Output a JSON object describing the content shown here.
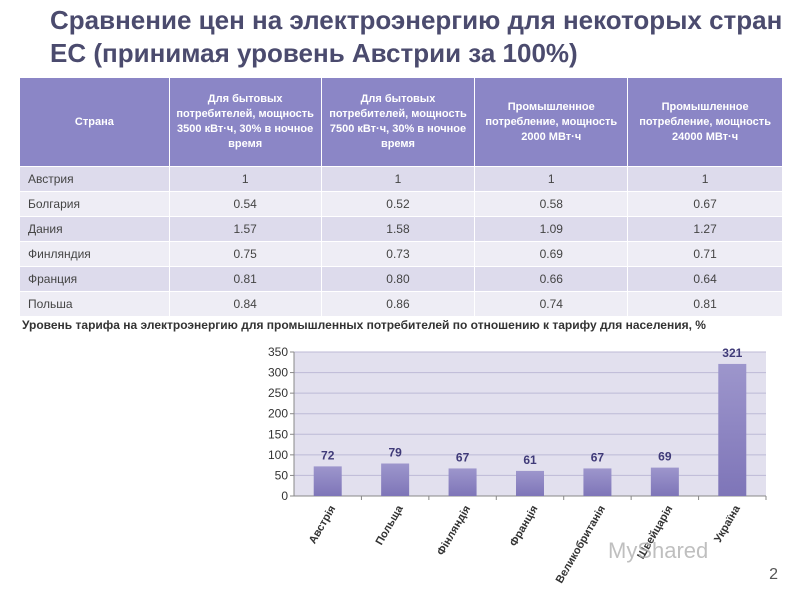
{
  "title": "Сравнение цен на электроэнергию для некоторых стран ЕС (принимая уровень Австрии за 100%)",
  "table": {
    "headers": [
      "Страна",
      "Для бытовых потребителей, мощность 3500 кВт·ч, 30% в ночное время",
      "Для бытовых потребителей, мощность 7500 кВт·ч, 30% в ночное время",
      "Промышленное потребление, мощность 2000 МВт·ч",
      "Промышленное потребление, мощность 24000 МВт·ч"
    ],
    "rows": [
      [
        "Австрия",
        "1",
        "1",
        "1",
        "1"
      ],
      [
        "Болгария",
        "0.54",
        "0.52",
        "0.58",
        "0.67"
      ],
      [
        "Дания",
        "1.57",
        "1.58",
        "1.09",
        "1.27"
      ],
      [
        "Финляндия",
        "0.75",
        "0.73",
        "0.69",
        "0.71"
      ],
      [
        "Франция",
        "0.81",
        "0.80",
        "0.66",
        "0.64"
      ],
      [
        "Польша",
        "0.84",
        "0.86",
        "0.74",
        "0.81"
      ]
    ]
  },
  "chart_caption": "Уровень тарифа на электроэнергию для промышленных потребителей по отношению к тарифу для населения, %",
  "chart_data": {
    "type": "bar",
    "categories": [
      "Австрія",
      "Польща",
      "Фінляндія",
      "Франція",
      "Великобританія",
      "Швейцарія",
      "Україна"
    ],
    "values": [
      72,
      79,
      67,
      61,
      67,
      69,
      321
    ],
    "ylim": [
      0,
      350
    ],
    "yticks": [
      0,
      50,
      100,
      150,
      200,
      250,
      300,
      350
    ],
    "grid": true,
    "colors": {
      "bar": "#7e75b8",
      "bar_light": "#9d96cc",
      "plot_bg": "#e2e0ee",
      "grid": "#bdbad6",
      "value_label": "#3f3a78"
    }
  },
  "page_number": "2",
  "watermark": "MyShared"
}
